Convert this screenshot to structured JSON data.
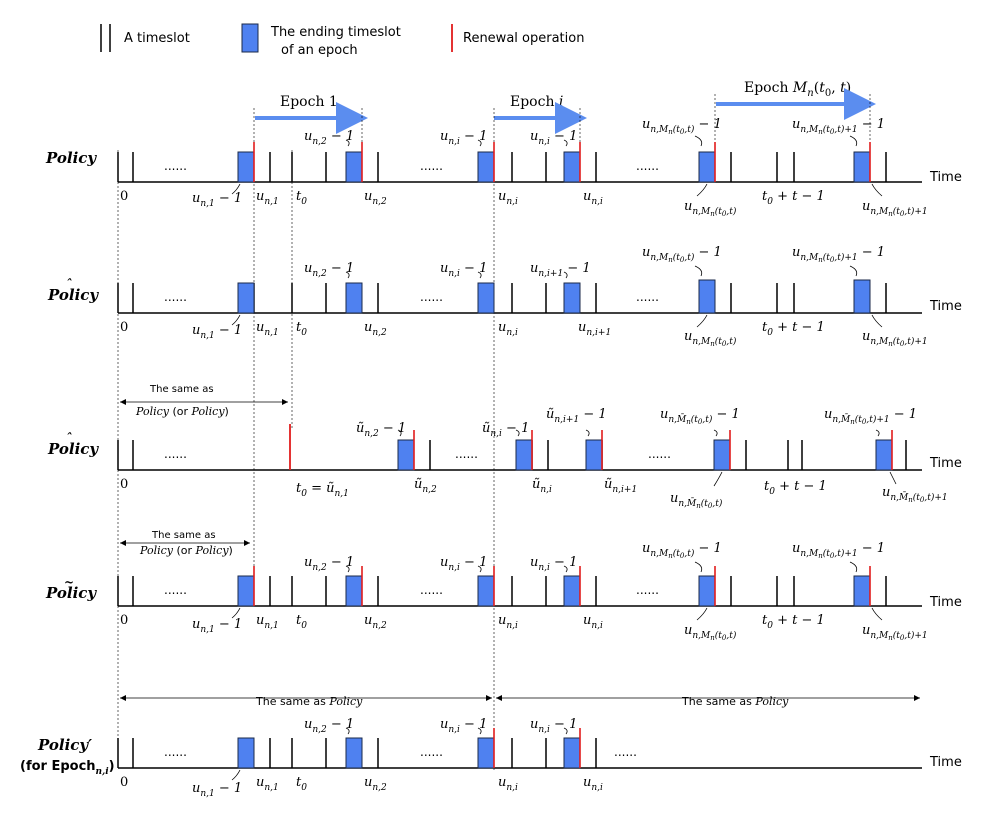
{
  "colors": {
    "block": "#4f81f0",
    "blockStroke": "#1b2a4a",
    "renewal": "#e11c1c",
    "epochArrow": "#5b8def",
    "axis": "#000000"
  },
  "legend": {
    "timeslot": "A timeslot",
    "ending_line1": "The ending timeslot",
    "ending_line2": "of an epoch",
    "renewal": "Renewal operation"
  },
  "epochs": {
    "epoch1": "Epoch 1",
    "epochI": "Epoch i",
    "epochM": "Epoch M",
    "epochM_sub": "n",
    "epochM_args": "(t",
    "epochM_args_sub": "0",
    "epochM_args_end": ", t)"
  },
  "axis_label": "Time",
  "dots": "......",
  "policies": {
    "p1": {
      "name": "Policy"
    },
    "p2": {
      "name": "Policy"
    },
    "p3": {
      "name": "Policy"
    },
    "p4": {
      "name": "Policy"
    },
    "p5": {
      "name": "Policy",
      "sup": "′",
      "note_prefix": "(for Epoch",
      "note_sub": "n,i",
      "note_suffix": ")"
    }
  },
  "labels": {
    "zero": "0",
    "u": "u",
    "minus1": " − 1",
    "sub_n1": "n,1",
    "sub_n2": "n,2",
    "sub_ni": "n,i",
    "sub_ni1": "n,i+1",
    "sub_nM": "n,M",
    "sub_nM_tail": "n",
    "sub_nM_paren": "(t",
    "sub_zero": "0",
    "sub_t_close": ",t)",
    "sub_plus1": "+1",
    "t": "t",
    "t0_plus": " + t − 1",
    "equals": " = "
  },
  "same_as": {
    "p3_line1": "The same as",
    "p3_line2_a": "Policy",
    "p3_line2_b": " (or ",
    "p3_line2_c": "Policy",
    "p3_line2_d": ")",
    "p4_line1": "The same as",
    "p4_line2_a": "Policy",
    "p4_line2_b": " (or ",
    "p4_line2_c": "Policy",
    "p4_line2_d": ")",
    "p5_left": "The same as ",
    "p5_left_b": "Policy",
    "p5_right": "The same as ",
    "p5_right_b": "Policy"
  }
}
